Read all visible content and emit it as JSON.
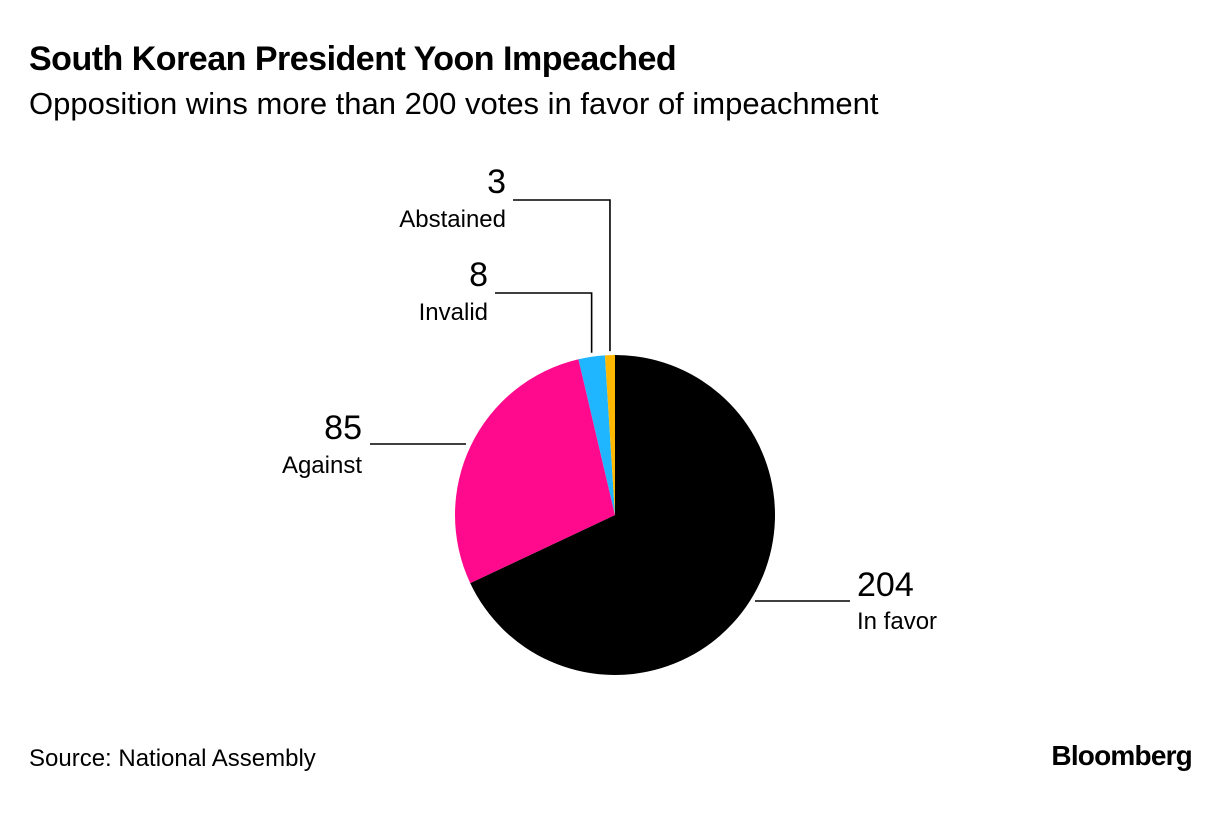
{
  "header": {
    "title": "South Korean President Yoon Impeached",
    "subtitle": "Opposition wins more than 200 votes in favor of impeachment"
  },
  "footer": {
    "source": "Source: National Assembly",
    "logo": "Bloomberg"
  },
  "chart_data": {
    "type": "pie",
    "title": "South Korean President Yoon Impeached",
    "subtitle": "Opposition wins more than 200 votes in favor of impeachment",
    "slices": [
      {
        "label": "In favor",
        "value": 204,
        "value_text": "204",
        "color": "#000000"
      },
      {
        "label": "Against",
        "value": 85,
        "value_text": "85",
        "color": "#ff0a8c"
      },
      {
        "label": "Invalid",
        "value": 8,
        "value_text": "8",
        "color": "#1fb6ff"
      },
      {
        "label": "Abstained",
        "value": 3,
        "value_text": "3",
        "color": "#ffb800"
      }
    ],
    "start_angle": "12 o'clock",
    "direction": "clockwise"
  }
}
